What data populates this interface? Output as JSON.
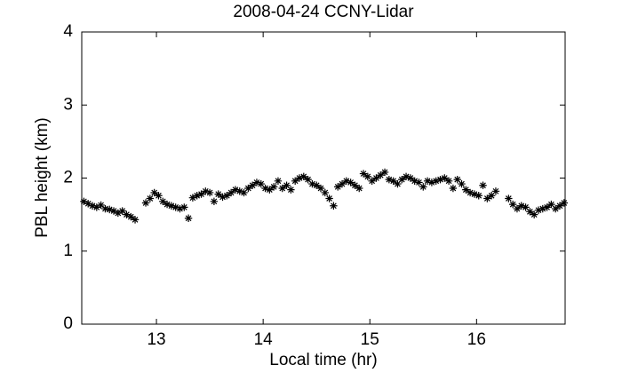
{
  "chart_data": {
    "type": "scatter",
    "title": "2008-04-24 CCNY-Lidar",
    "x_label": "Local time (hr)",
    "y_label": "PBL height (km)",
    "color": "#000000",
    "marker": "asterisk",
    "grid": false,
    "xlim": [
      12.3,
      16.83
    ],
    "ylim": [
      0,
      4
    ],
    "xticks": [
      13,
      14,
      15,
      16
    ],
    "yticks": [
      0,
      1,
      2,
      3,
      4
    ],
    "x": [
      12.32,
      12.36,
      12.4,
      12.44,
      12.48,
      12.52,
      12.56,
      12.6,
      12.64,
      12.68,
      12.72,
      12.76,
      12.8,
      12.9,
      12.94,
      12.98,
      13.02,
      13.06,
      13.1,
      13.14,
      13.18,
      13.22,
      13.26,
      13.3,
      13.34,
      13.38,
      13.42,
      13.46,
      13.5,
      13.54,
      13.58,
      13.62,
      13.66,
      13.7,
      13.74,
      13.78,
      13.82,
      13.86,
      13.9,
      13.94,
      13.98,
      14.02,
      14.06,
      14.1,
      14.14,
      14.18,
      14.22,
      14.26,
      14.3,
      14.34,
      14.38,
      14.42,
      14.46,
      14.5,
      14.54,
      14.58,
      14.62,
      14.66,
      14.7,
      14.74,
      14.78,
      14.82,
      14.86,
      14.9,
      14.94,
      14.98,
      15.02,
      15.06,
      15.1,
      15.14,
      15.18,
      15.22,
      15.26,
      15.3,
      15.34,
      15.38,
      15.42,
      15.46,
      15.5,
      15.54,
      15.58,
      15.62,
      15.66,
      15.7,
      15.74,
      15.78,
      15.82,
      15.86,
      15.9,
      15.94,
      15.98,
      16.02,
      16.06,
      16.1,
      16.14,
      16.18,
      16.3,
      16.34,
      16.38,
      16.42,
      16.46,
      16.5,
      16.54,
      16.58,
      16.62,
      16.66,
      16.7,
      16.74,
      16.78,
      16.82
    ],
    "values": [
      1.68,
      1.65,
      1.62,
      1.6,
      1.63,
      1.58,
      1.57,
      1.55,
      1.52,
      1.55,
      1.5,
      1.47,
      1.43,
      1.66,
      1.72,
      1.8,
      1.76,
      1.68,
      1.64,
      1.62,
      1.6,
      1.58,
      1.6,
      1.45,
      1.73,
      1.76,
      1.78,
      1.82,
      1.8,
      1.68,
      1.78,
      1.74,
      1.76,
      1.8,
      1.84,
      1.82,
      1.8,
      1.86,
      1.9,
      1.94,
      1.92,
      1.86,
      1.84,
      1.88,
      1.96,
      1.86,
      1.9,
      1.84,
      1.96,
      2.0,
      2.02,
      1.98,
      1.92,
      1.9,
      1.86,
      1.8,
      1.72,
      1.62,
      1.88,
      1.92,
      1.96,
      1.94,
      1.9,
      1.86,
      2.06,
      2.02,
      1.96,
      2.0,
      2.04,
      2.08,
      1.98,
      1.96,
      1.92,
      1.98,
      2.02,
      2.0,
      1.96,
      1.94,
      1.88,
      1.96,
      1.94,
      1.96,
      1.98,
      2.0,
      1.96,
      1.86,
      1.98,
      1.92,
      1.84,
      1.8,
      1.78,
      1.76,
      1.9,
      1.72,
      1.76,
      1.82,
      1.72,
      1.64,
      1.58,
      1.62,
      1.6,
      1.54,
      1.5,
      1.56,
      1.58,
      1.6,
      1.64,
      1.58,
      1.62,
      1.66
    ]
  }
}
